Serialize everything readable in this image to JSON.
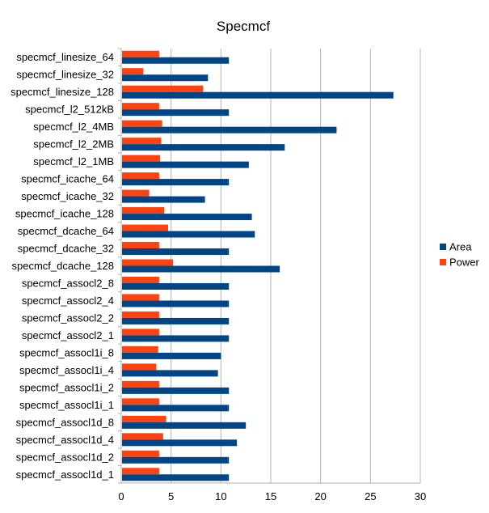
{
  "chart_data": {
    "type": "bar",
    "orientation": "horizontal",
    "title": "Specmcf",
    "xlim": [
      0,
      30
    ],
    "x_ticks": [
      0,
      5,
      10,
      15,
      20,
      25,
      30
    ],
    "grid": "vertical",
    "legend_position": "right",
    "categories": [
      "specmcf_linesize_64",
      "specmcf_linesize_32",
      "specmcf_linesize_128",
      "specmcf_l2_512kB",
      "specmcf_l2_4MB",
      "specmcf_l2_2MB",
      "specmcf_l2_1MB",
      "specmcf_icache_64",
      "specmcf_icache_32",
      "specmcf_icache_128",
      "specmcf_dcache_64",
      "specmcf_dcache_32",
      "specmcf_dcache_128",
      "specmcf_assocl2_8",
      "specmcf_assocl2_4",
      "specmcf_assocl2_2",
      "specmcf_assocl2_1",
      "specmcf_assocl1i_8",
      "specmcf_assocl1i_4",
      "specmcf_assocl1i_2",
      "specmcf_assocl1i_1",
      "specmcf_assocl1d_8",
      "specmcf_assocl1d_4",
      "specmcf_assocl1d_2",
      "specmcf_assocl1d_1"
    ],
    "series": [
      {
        "name": "Area",
        "color": "#004586",
        "values": [
          10.8,
          8.7,
          27.3,
          10.8,
          21.6,
          16.4,
          12.8,
          10.8,
          8.4,
          13.1,
          13.4,
          10.8,
          15.9,
          10.8,
          10.8,
          10.8,
          10.8,
          10.0,
          9.7,
          10.8,
          10.8,
          12.5,
          11.6,
          10.8,
          10.8
        ]
      },
      {
        "name": "Power",
        "color": "#ff420e",
        "values": [
          3.8,
          2.2,
          8.2,
          3.8,
          4.1,
          4.0,
          3.9,
          3.8,
          2.8,
          4.3,
          4.7,
          3.8,
          5.2,
          3.8,
          3.8,
          3.8,
          3.8,
          3.7,
          3.5,
          3.8,
          3.8,
          4.5,
          4.2,
          3.8,
          3.8
        ]
      }
    ]
  }
}
